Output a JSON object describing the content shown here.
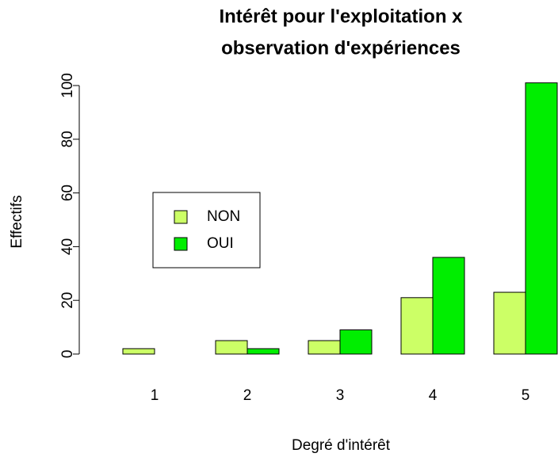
{
  "chart_data": {
    "type": "grouped_bar",
    "title": [
      "Intérêt pour l'exploitation x",
      "observation d'expériences"
    ],
    "x_label": "Degré d'intérêt",
    "y_label": "Effectifs",
    "categories": [
      "1",
      "2",
      "3",
      "4",
      "5"
    ],
    "series": [
      {
        "name": "NON",
        "color": "#ccff66",
        "values": [
          2,
          5,
          5,
          21,
          23
        ]
      },
      {
        "name": "OUI",
        "color": "#00ee00",
        "values": [
          0,
          2,
          9,
          36,
          101
        ]
      }
    ],
    "ylim": [
      0,
      100
    ],
    "yticks": [
      0,
      20,
      40,
      60,
      80,
      100
    ],
    "legend": "left"
  }
}
